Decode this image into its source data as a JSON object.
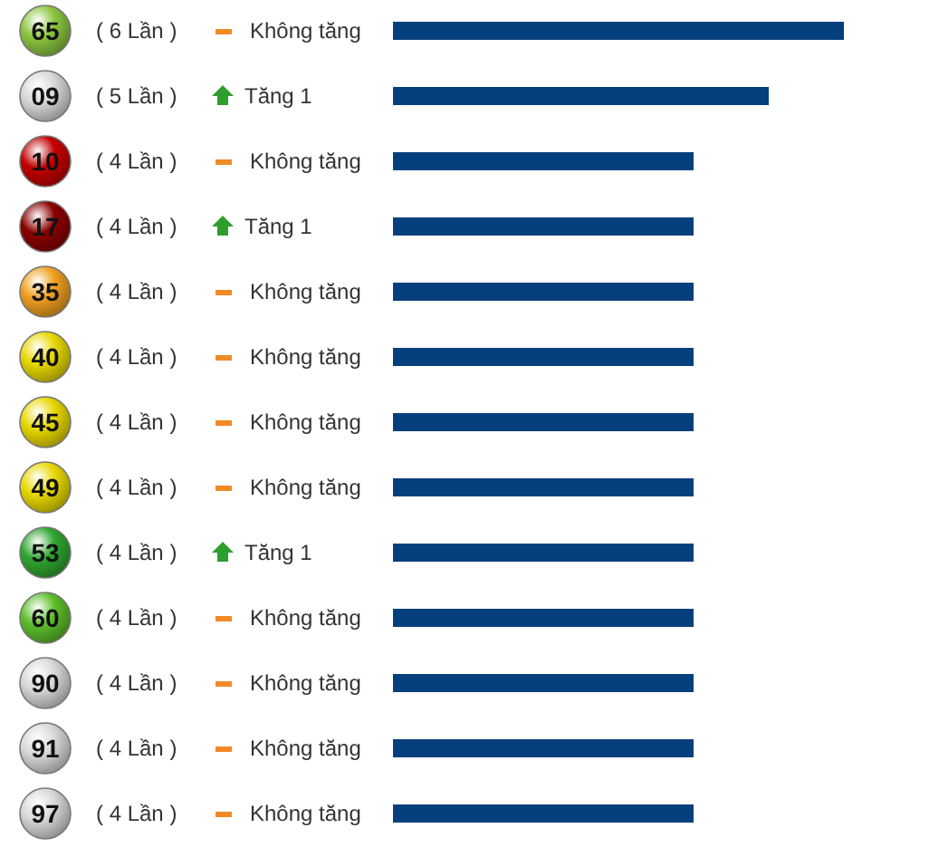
{
  "chart_data": {
    "type": "bar",
    "orientation": "horizontal",
    "categories": [
      "65",
      "09",
      "10",
      "17",
      "35",
      "40",
      "45",
      "49",
      "53",
      "60",
      "90",
      "91",
      "97"
    ],
    "values": [
      6,
      5,
      4,
      4,
      4,
      4,
      4,
      4,
      4,
      4,
      4,
      4,
      4
    ],
    "color": "#063f7e",
    "value_labels": [
      "( 6 Lần )",
      "( 5 Lần )",
      "( 4 Lần )",
      "( 4 Lần )",
      "( 4 Lần )",
      "( 4 Lần )",
      "( 4 Lần )",
      "( 4 Lần )",
      "( 4 Lần )",
      "( 4 Lần )",
      "( 4 Lần )",
      "( 4 Lần )",
      "( 4 Lần )"
    ],
    "annotations": [
      "Không tăng",
      "Tăng 1",
      "Không tăng",
      "Tăng 1",
      "Không tăng",
      "Không tăng",
      "Không tăng",
      "Không tăng",
      "Tăng 1",
      "Không tăng",
      "Không tăng",
      "Không tăng",
      "Không tăng"
    ]
  }
}
